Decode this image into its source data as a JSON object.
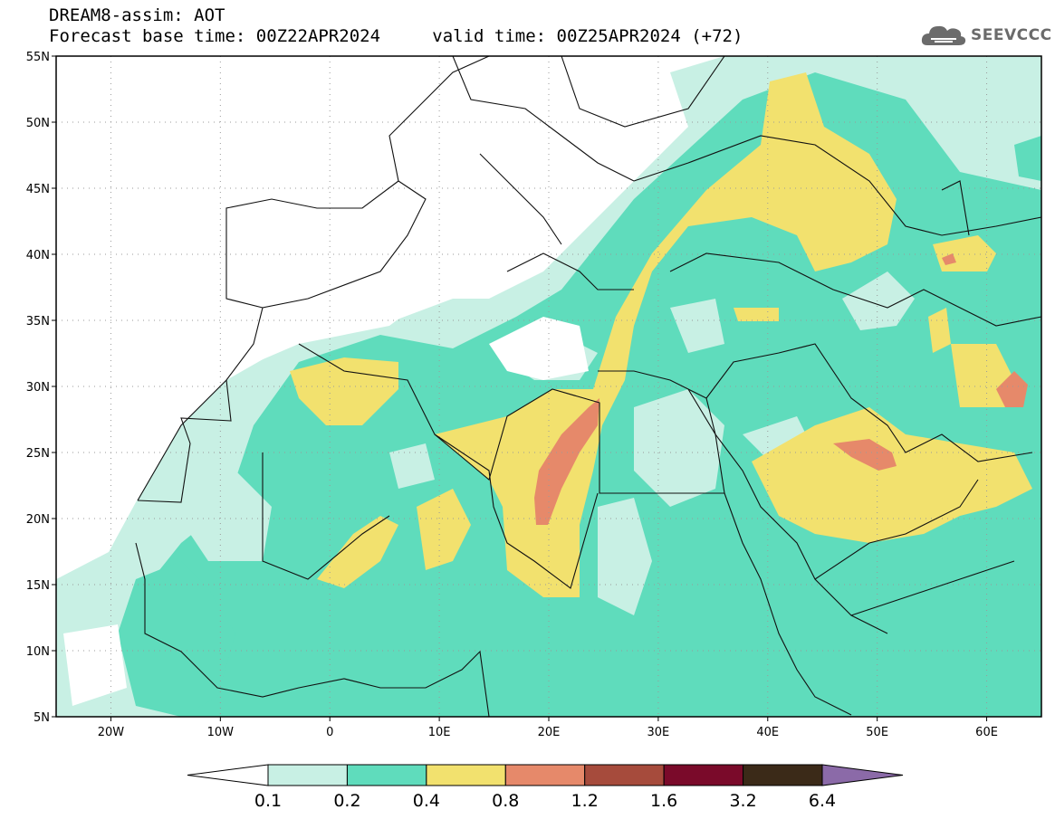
{
  "header": {
    "title_line1": "DREAM8-assim: AOT",
    "base_label": "Forecast base time: 00Z22APR2024",
    "valid_label": "valid time: 00Z25APR2024 (+72)"
  },
  "logo": {
    "text": "SEEVCCC",
    "icon": "cloud-icon"
  },
  "map": {
    "lat_ticks": [
      "55N",
      "50N",
      "45N",
      "40N",
      "35N",
      "30N",
      "25N",
      "20N",
      "15N",
      "10N",
      "5N"
    ],
    "lon_ticks": [
      "20W",
      "10W",
      "0",
      "10E",
      "20E",
      "30E",
      "40E",
      "50E",
      "60E"
    ],
    "extent": {
      "lon_min": -25,
      "lon_max": 65,
      "lat_min": 5,
      "lat_max": 55
    },
    "grid": true
  },
  "colorbar": {
    "labels": [
      "0.1",
      "0.2",
      "0.4",
      "0.8",
      "1.2",
      "1.6",
      "3.2",
      "6.4"
    ],
    "colors": [
      "#ffffff",
      "#c8f0e4",
      "#5fdcbc",
      "#f2e16e",
      "#e6896a",
      "#a64b3c",
      "#7a0a2a",
      "#3b2a18",
      "#8b6aa8"
    ]
  },
  "colors": {
    "c01": "#c8f0e4",
    "c02": "#5fdcbc",
    "c04": "#f2e16e",
    "c08": "#e6896a",
    "c12": "#a64b3c"
  }
}
